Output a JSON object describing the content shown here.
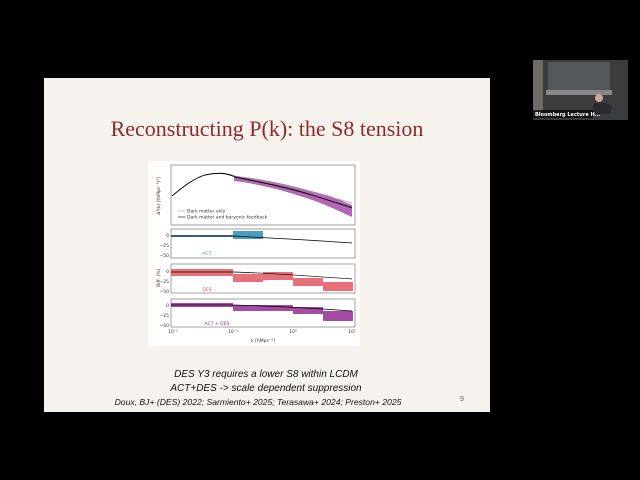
{
  "slide": {
    "title": "Reconstructing P(k): the S8 tension",
    "figure": {
      "y_label": "Δ²(k) [(hMpc⁻¹)³]",
      "legend": [
        "Dark matter only",
        "Dark matter and baryonic feedback"
      ],
      "panels": [
        "ACT",
        "DES",
        "ACT + DES"
      ],
      "diff_label": "Diff. (%)",
      "y_ticks": [
        "0",
        "−25",
        "−50"
      ],
      "x_ticks": [
        "10⁻²",
        "10⁻¹",
        "10⁰",
        "10¹"
      ],
      "x_label": "k [hMpc⁻¹]"
    },
    "lines": [
      "DES Y3 requires a lower S8 within LCDM",
      "ACT+DES -> scale dependent suppression",
      "Doux, BJ+ (DES) 2022; Sarmiento+ 2025; Terasawa+ 2024; Preston+ 2025"
    ],
    "page_number": "9"
  },
  "video": {
    "label": "Bloomberg Lecture H..."
  }
}
